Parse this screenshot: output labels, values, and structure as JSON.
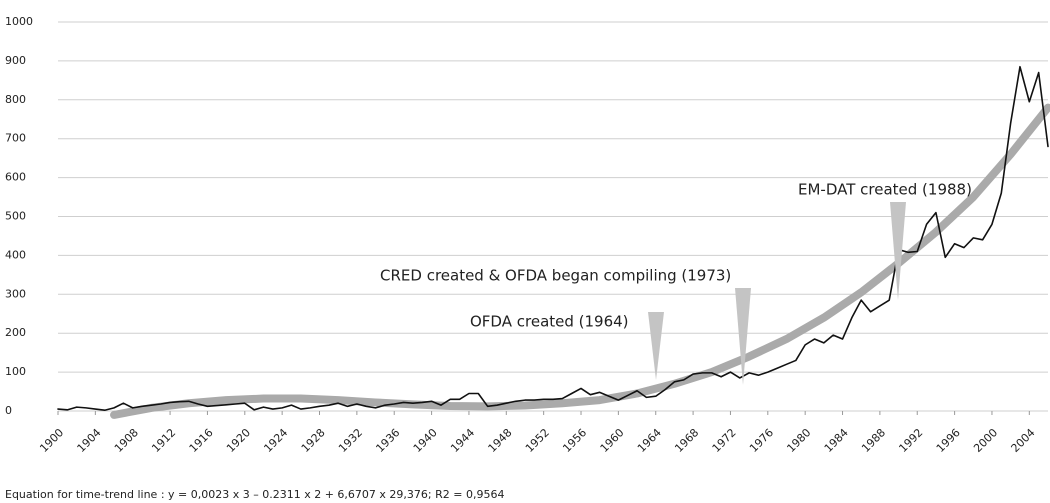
{
  "chart_data": {
    "type": "line",
    "footnote": "Equation for time-trend line : y = 0,0023 x 3 – 0.2311 x 2 + 6,6707 x 29,376; R2 = 0,9564",
    "annotations": [
      "OFDA created (1964)",
      "CRED created & OFDA began compiling (1973)",
      "EM-DAT created (1988)"
    ],
    "xlim": [
      1900,
      2006
    ],
    "ylim": [
      0,
      1000
    ],
    "xticks": [
      1900,
      1904,
      1908,
      1912,
      1916,
      1920,
      1924,
      1928,
      1932,
      1936,
      1940,
      1944,
      1948,
      1952,
      1956,
      1960,
      1964,
      1968,
      1972,
      1976,
      1980,
      1984,
      1988,
      1992,
      1996,
      2000,
      2004
    ],
    "yticks": [
      0,
      100,
      200,
      300,
      400,
      500,
      600,
      700,
      800,
      900,
      1000
    ],
    "grid": true,
    "series": [
      {
        "color": "#aaaaaa",
        "x": [
          1906,
          1910,
          1914,
          1918,
          1922,
          1926,
          1930,
          1934,
          1938,
          1942,
          1946,
          1950,
          1954,
          1958,
          1962,
          1966,
          1970,
          1974,
          1978,
          1982,
          1986,
          1990,
          1994,
          1998,
          2002,
          2006
        ],
        "values": [
          -10,
          8,
          20,
          28,
          32,
          32,
          28,
          22,
          17,
          13,
          12,
          14,
          20,
          28,
          45,
          70,
          100,
          140,
          185,
          240,
          305,
          380,
          460,
          550,
          660,
          780
        ]
      },
      {
        "color": "#111111",
        "x": [
          1900,
          1901,
          1902,
          1903,
          1904,
          1905,
          1906,
          1907,
          1908,
          1909,
          1910,
          1911,
          1912,
          1913,
          1914,
          1915,
          1916,
          1917,
          1918,
          1919,
          1920,
          1921,
          1922,
          1923,
          1924,
          1925,
          1926,
          1927,
          1928,
          1929,
          1930,
          1931,
          1932,
          1933,
          1934,
          1935,
          1936,
          1937,
          1938,
          1939,
          1940,
          1941,
          1942,
          1943,
          1944,
          1945,
          1946,
          1947,
          1948,
          1949,
          1950,
          1951,
          1952,
          1953,
          1954,
          1955,
          1956,
          1957,
          1958,
          1959,
          1960,
          1961,
          1962,
          1963,
          1964,
          1965,
          1966,
          1967,
          1968,
          1969,
          1970,
          1971,
          1972,
          1973,
          1974,
          1975,
          1976,
          1977,
          1978,
          1979,
          1980,
          1981,
          1982,
          1983,
          1984,
          1985,
          1986,
          1987,
          1988,
          1989,
          1990,
          1991,
          1992,
          1993,
          1994,
          1995,
          1996,
          1997,
          1998,
          1999,
          2000,
          2001,
          2002,
          2003,
          2004,
          2005,
          2006
        ],
        "values": [
          5,
          3,
          10,
          8,
          5,
          2,
          8,
          20,
          8,
          12,
          15,
          18,
          22,
          24,
          25,
          18,
          12,
          14,
          16,
          18,
          20,
          3,
          10,
          5,
          8,
          15,
          5,
          8,
          12,
          15,
          20,
          12,
          18,
          12,
          8,
          15,
          18,
          22,
          20,
          22,
          25,
          15,
          30,
          30,
          45,
          45,
          12,
          15,
          20,
          25,
          28,
          28,
          30,
          30,
          32,
          45,
          58,
          42,
          48,
          38,
          28,
          40,
          52,
          35,
          38,
          55,
          75,
          80,
          95,
          98,
          98,
          88,
          100,
          85,
          98,
          92,
          100,
          110,
          120,
          130,
          170,
          185,
          175,
          195,
          185,
          240,
          285,
          255,
          270,
          285,
          415,
          408,
          410,
          480,
          510,
          395,
          430,
          420,
          445,
          440,
          480,
          560,
          740,
          885,
          795,
          870,
          680
        ]
      }
    ]
  }
}
